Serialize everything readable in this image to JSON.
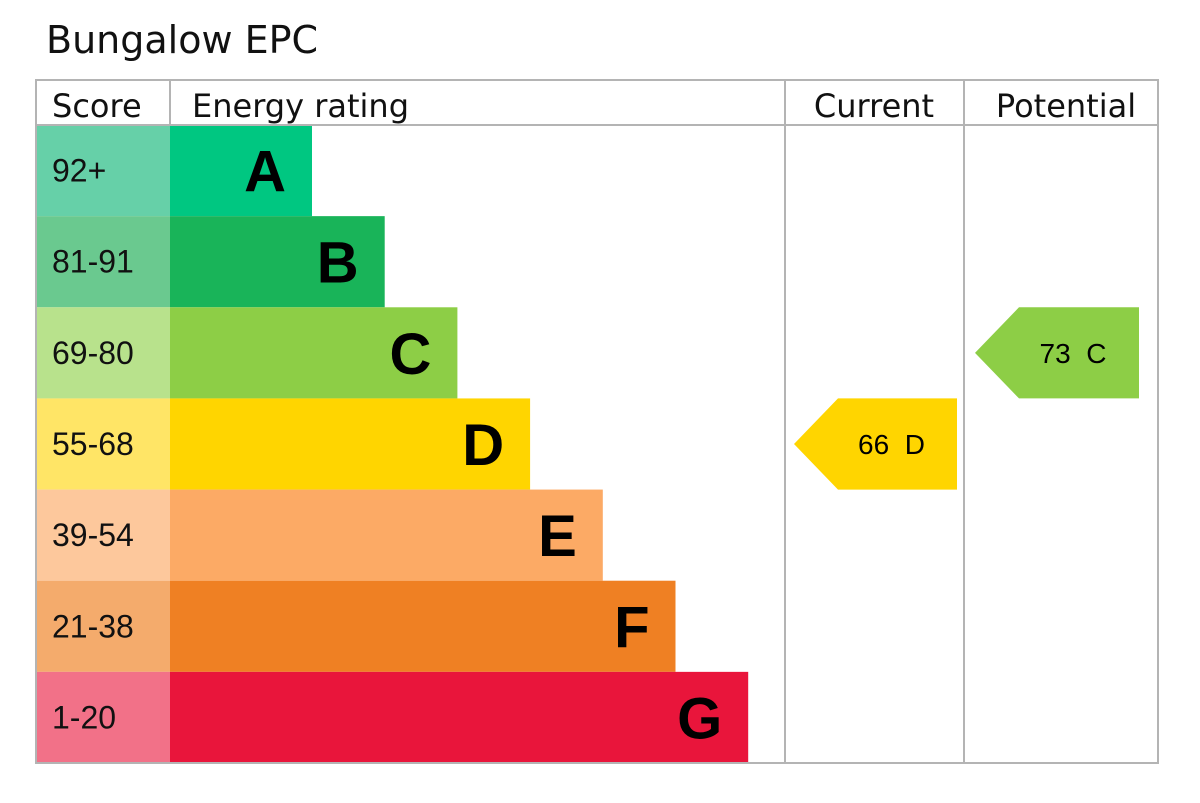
{
  "title": "Bungalow EPC",
  "chart_data": {
    "type": "table",
    "title": "Bungalow EPC",
    "columns": [
      "Score",
      "Energy rating",
      "Current",
      "Potential"
    ],
    "bands": [
      {
        "letter": "A",
        "score": "92+",
        "bar_color": "#00c781",
        "score_bg": "#66d0a8"
      },
      {
        "letter": "B",
        "score": "81-91",
        "bar_color": "#19b459",
        "score_bg": "#6ac98f"
      },
      {
        "letter": "C",
        "score": "69-80",
        "bar_color": "#8dce46",
        "score_bg": "#b8e28c"
      },
      {
        "letter": "D",
        "score": "55-68",
        "bar_color": "#ffd500",
        "score_bg": "#ffe566"
      },
      {
        "letter": "E",
        "score": "39-54",
        "bar_color": "#fcaa65",
        "score_bg": "#fdc89c"
      },
      {
        "letter": "F",
        "score": "21-38",
        "bar_color": "#ef8023",
        "score_bg": "#f4ab6c"
      },
      {
        "letter": "G",
        "score": "1-20",
        "bar_color": "#e9153b",
        "score_bg": "#f27188"
      }
    ],
    "current": {
      "value": 66,
      "band": "D",
      "label": "66  D",
      "color": "#ffd500"
    },
    "potential": {
      "value": 73,
      "band": "C",
      "label": "73  C",
      "color": "#8dce46"
    }
  }
}
